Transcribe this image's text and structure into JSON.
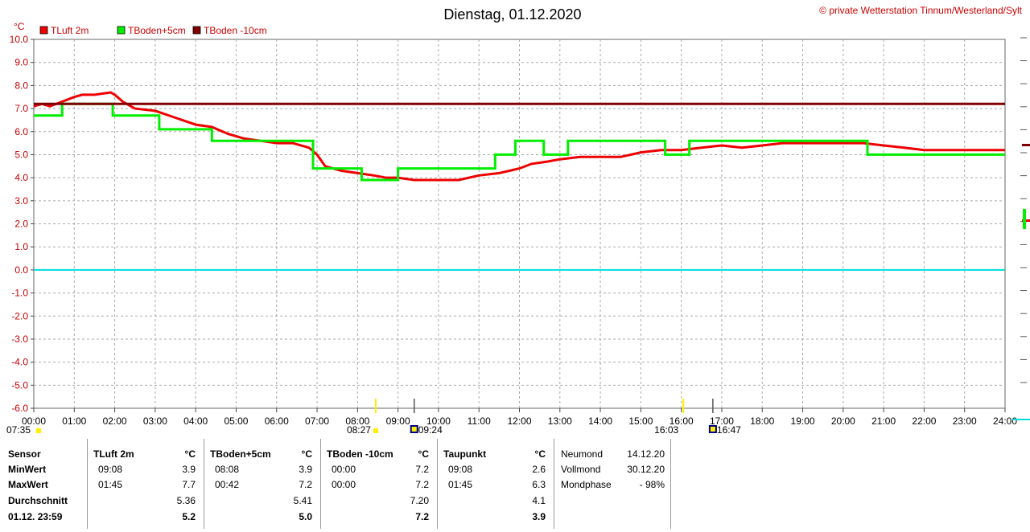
{
  "chart_data": {
    "type": "line",
    "title": "Dienstag, 01.12.2020",
    "copyright": "© private Wetterstation Tinnum/Westerland/Sylt",
    "ylabel": "°C",
    "ylim": [
      -6,
      10
    ],
    "xlim": [
      0,
      24
    ],
    "grid": true,
    "y_ticks": [
      "10.0",
      "9.0",
      "8.0",
      "7.0",
      "6.0",
      "5.0",
      "4.0",
      "3.0",
      "2.0",
      "1.0",
      "0.0",
      "-1.0",
      "-2.0",
      "-3.0",
      "-4.0",
      "-5.0",
      "-6.0"
    ],
    "x_ticks": [
      "00:00",
      "01:00",
      "02:00",
      "03:00",
      "04:00",
      "05:00",
      "06:00",
      "07:00",
      "08:00",
      "09:00",
      "10:00",
      "11:00",
      "12:00",
      "13:00",
      "14:00",
      "15:00",
      "16:00",
      "17:00",
      "18:00",
      "19:00",
      "20:00",
      "21:00",
      "22:00",
      "23:00",
      "24:00"
    ],
    "sun_moon_markers": [
      {
        "label": "07:35",
        "time": 7.58,
        "kind": "sunrise"
      },
      {
        "label": "08:27",
        "time": 8.45,
        "kind": "sun"
      },
      {
        "label": "09:24",
        "time": 9.4,
        "kind": "moon"
      },
      {
        "label": "16:03",
        "time": 16.05,
        "kind": "sunset"
      },
      {
        "label": "16:47",
        "time": 16.78,
        "kind": "moon"
      }
    ],
    "series": [
      {
        "name": "TLuft 2m",
        "color": "#ee0000",
        "x": [
          0,
          0.2,
          0.4,
          0.7,
          1.0,
          1.2,
          1.5,
          1.9,
          2.0,
          2.2,
          2.5,
          3.0,
          3.5,
          4.0,
          4.4,
          4.8,
          5.2,
          5.6,
          6.0,
          6.4,
          6.8,
          7.0,
          7.2,
          7.6,
          8.0,
          8.4,
          8.7,
          9.0,
          9.4,
          10.0,
          10.5,
          11.0,
          11.5,
          12.0,
          12.3,
          12.7,
          13.0,
          13.5,
          14.0,
          14.5,
          15.0,
          15.5,
          16.0,
          16.5,
          17.0,
          17.5,
          18.0,
          18.5,
          19.0,
          19.5,
          20.0,
          20.5,
          21.0,
          21.5,
          22.0,
          22.5,
          23.0,
          23.5,
          24.0
        ],
        "y": [
          7.1,
          7.2,
          7.1,
          7.3,
          7.5,
          7.6,
          7.6,
          7.7,
          7.6,
          7.3,
          7.0,
          6.9,
          6.6,
          6.3,
          6.2,
          5.9,
          5.7,
          5.6,
          5.5,
          5.5,
          5.3,
          5.0,
          4.5,
          4.3,
          4.2,
          4.1,
          4.0,
          4.0,
          3.9,
          3.9,
          3.9,
          4.1,
          4.2,
          4.4,
          4.6,
          4.7,
          4.8,
          4.9,
          4.9,
          4.9,
          5.1,
          5.2,
          5.2,
          5.3,
          5.4,
          5.3,
          5.4,
          5.5,
          5.5,
          5.5,
          5.5,
          5.5,
          5.4,
          5.3,
          5.2,
          5.2,
          5.2,
          5.2,
          5.2
        ]
      },
      {
        "name": "TBoden+5cm",
        "color": "#00ee00",
        "x": [
          0,
          0.7,
          0.7,
          1.95,
          1.95,
          3.1,
          3.1,
          4.4,
          4.4,
          6.9,
          6.9,
          8.1,
          8.1,
          9.0,
          9.0,
          11.4,
          11.4,
          11.9,
          11.9,
          12.6,
          12.6,
          13.2,
          13.2,
          14.0,
          14.0,
          15.6,
          15.6,
          16.2,
          16.2,
          17.7,
          17.7,
          20.6,
          20.6,
          22.9,
          22.9,
          24.0
        ],
        "y": [
          6.7,
          6.7,
          7.2,
          7.2,
          6.7,
          6.7,
          6.1,
          6.1,
          5.6,
          5.6,
          4.4,
          4.4,
          3.9,
          3.9,
          4.4,
          4.4,
          5.0,
          5.0,
          5.6,
          5.6,
          5.0,
          5.0,
          5.6,
          5.6,
          5.6,
          5.6,
          5.0,
          5.0,
          5.6,
          5.6,
          5.6,
          5.6,
          5.0,
          5.0,
          5.0,
          5.0
        ]
      },
      {
        "name": "TBoden -10cm",
        "color": "#7f0000",
        "x": [
          0,
          24
        ],
        "y": [
          7.2,
          7.2
        ]
      },
      {
        "name": "Taupunkt",
        "color": "#00dddd",
        "hidden_line": true,
        "x": [
          0,
          24
        ],
        "y": [
          0,
          0
        ]
      }
    ]
  },
  "stats": {
    "header": {
      "sensor": "Sensor",
      "unit": "°C"
    },
    "row_labels": [
      "MinWert",
      "MaxWert",
      "Durchschnitt",
      "01.12. 23:59"
    ],
    "columns": [
      {
        "name": "TLuft 2m",
        "min_time": "09:08",
        "min": "3.9",
        "max_time": "01:45",
        "max": "7.7",
        "avg": "5.36",
        "last": "5.2"
      },
      {
        "name": "TBoden+5cm",
        "min_time": "08:08",
        "min": "3.9",
        "max_time": "00:42",
        "max": "7.2",
        "avg": "5.41",
        "last": "5.0"
      },
      {
        "name": "TBoden -10cm",
        "min_time": "00:00",
        "min": "7.2",
        "max_time": "00:00",
        "max": "7.2",
        "avg": "7.20",
        "last": "7.2"
      },
      {
        "name": "Taupunkt",
        "min_time": "09:08",
        "min": "2.6",
        "max_time": "01:45",
        "max": "6.3",
        "avg": "4.1",
        "last": "3.9"
      }
    ],
    "moon": [
      {
        "label": "Neumond",
        "value": "14.12.20"
      },
      {
        "label": "Vollmond",
        "value": "30.12.20"
      },
      {
        "label": "Mondphase",
        "value": "- 98%"
      }
    ]
  }
}
